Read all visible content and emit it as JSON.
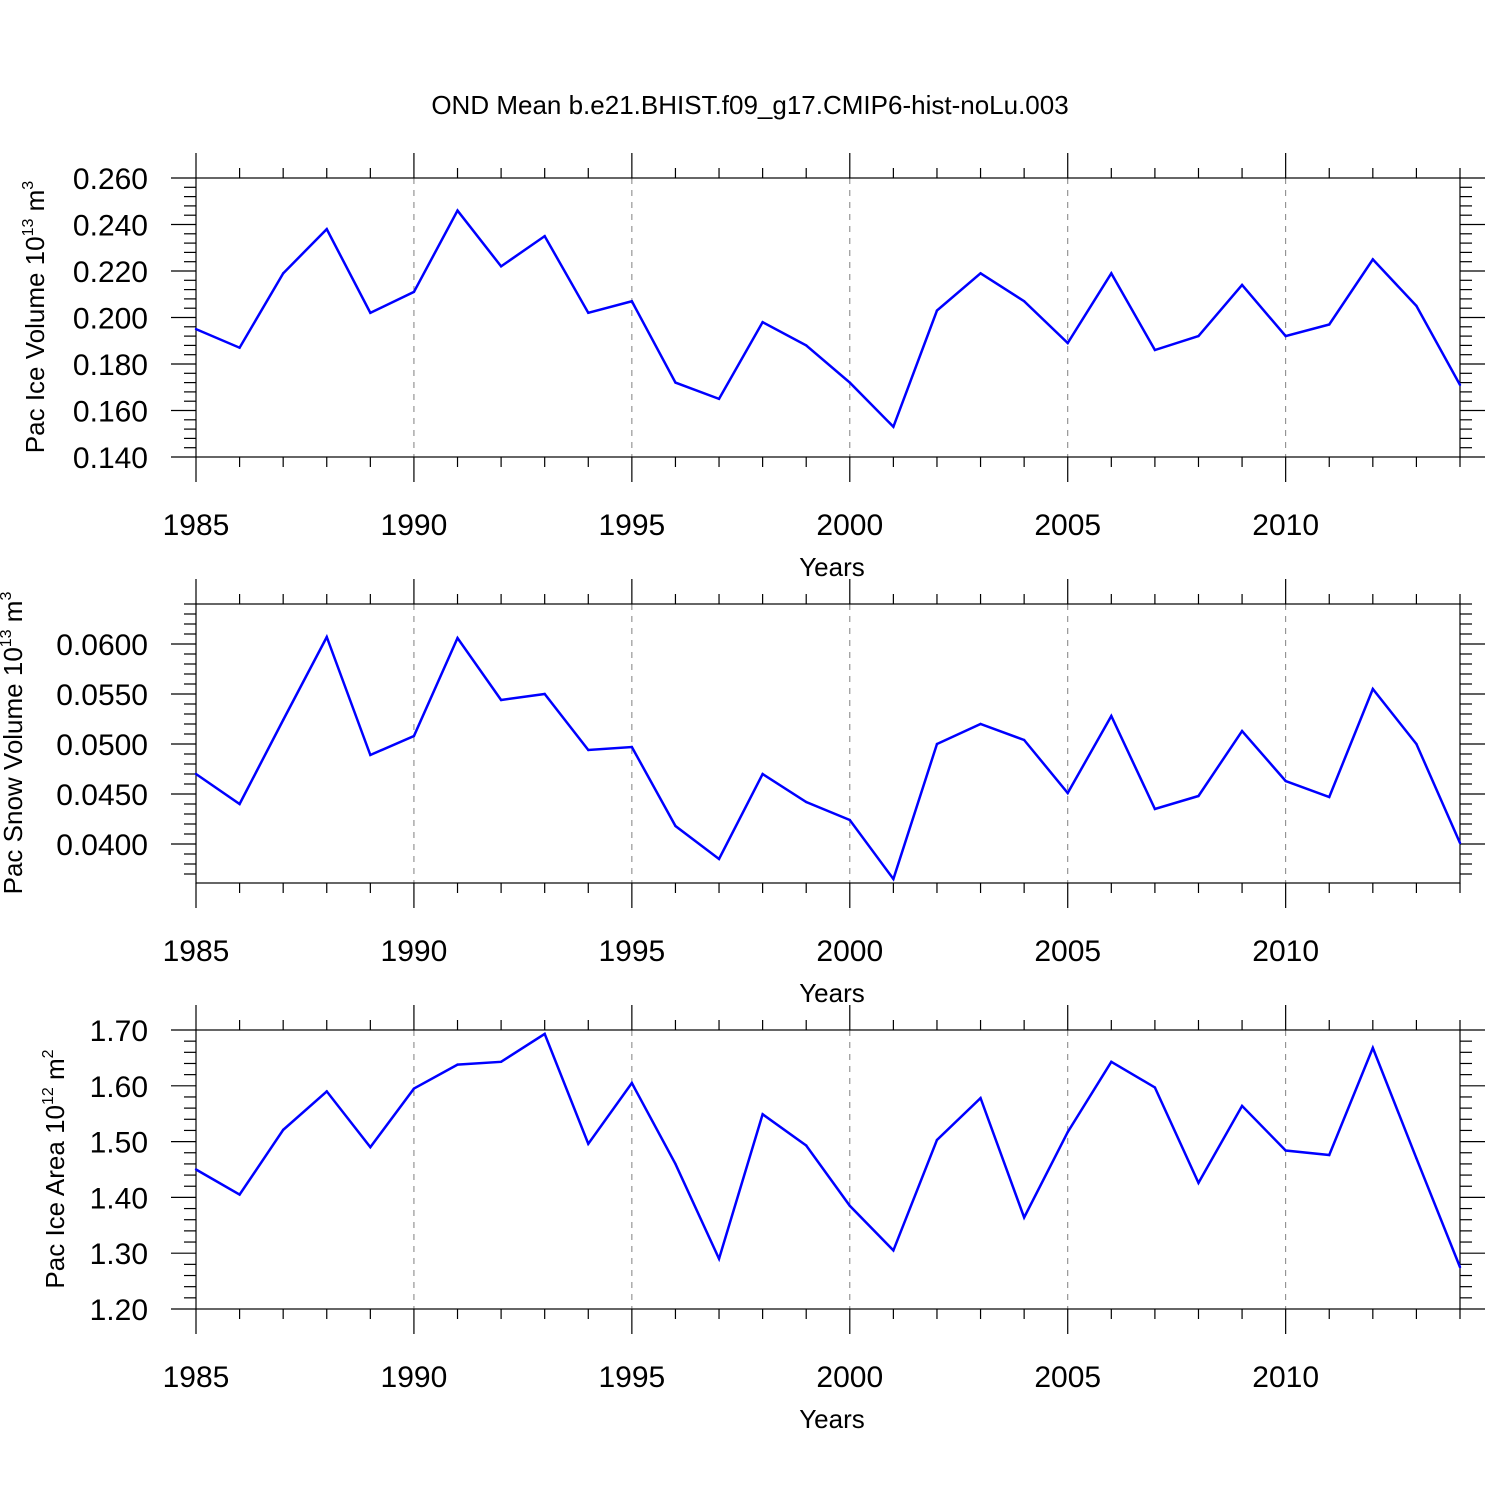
{
  "title": "OND Mean b.e21.BHIST.f09_g17.CMIP6-hist-noLu.003",
  "colors": {
    "line": "#0000ff",
    "axis": "#000000",
    "grid": "#808080"
  },
  "chart_data": [
    {
      "type": "line",
      "xlabel": "Years",
      "ylabel": {
        "prefix": "Pac Ice Volume 10",
        "exponent": "13",
        "unit": " m",
        "unit_exponent": "3"
      },
      "xlim": [
        1985,
        2014
      ],
      "ylim": [
        0.14,
        0.26
      ],
      "x_ticks": [
        1985,
        1990,
        1995,
        2000,
        2005,
        2010
      ],
      "x_tick_labels": [
        "1985",
        "1990",
        "1995",
        "2000",
        "2005",
        "2010"
      ],
      "y_ticks": [
        0.14,
        0.16,
        0.18,
        0.2,
        0.22,
        0.24,
        0.26
      ],
      "y_tick_labels": [
        "0.140",
        "0.160",
        "0.180",
        "0.200",
        "0.220",
        "0.240",
        "0.260"
      ],
      "grid_x": true,
      "x": [
        1985,
        1986,
        1987,
        1988,
        1989,
        1990,
        1991,
        1992,
        1993,
        1994,
        1995,
        1996,
        1997,
        1998,
        1999,
        2000,
        2001,
        2002,
        2003,
        2004,
        2005,
        2006,
        2007,
        2008,
        2009,
        2010,
        2011,
        2012,
        2013,
        2014
      ],
      "values": [
        0.195,
        0.187,
        0.219,
        0.238,
        0.202,
        0.211,
        0.246,
        0.222,
        0.235,
        0.202,
        0.207,
        0.172,
        0.165,
        0.198,
        0.188,
        0.172,
        0.153,
        0.203,
        0.219,
        0.207,
        0.189,
        0.219,
        0.186,
        0.192,
        0.214,
        0.192,
        0.197,
        0.225,
        0.205,
        0.171
      ]
    },
    {
      "type": "line",
      "xlabel": "Years",
      "ylabel": {
        "prefix": "Pac Snow Volume 10",
        "exponent": "13",
        "unit": " m",
        "unit_exponent": "3"
      },
      "xlim": [
        1985,
        2014
      ],
      "ylim": [
        0.0361,
        0.064
      ],
      "x_ticks": [
        1985,
        1990,
        1995,
        2000,
        2005,
        2010
      ],
      "x_tick_labels": [
        "1985",
        "1990",
        "1995",
        "2000",
        "2005",
        "2010"
      ],
      "y_ticks": [
        0.04,
        0.045,
        0.05,
        0.055,
        0.06
      ],
      "y_tick_labels": [
        "0.0400",
        "0.0450",
        "0.0500",
        "0.0550",
        "0.0600"
      ],
      "grid_x": true,
      "x": [
        1985,
        1986,
        1987,
        1988,
        1989,
        1990,
        1991,
        1992,
        1993,
        1994,
        1995,
        1996,
        1997,
        1998,
        1999,
        2000,
        2001,
        2002,
        2003,
        2004,
        2005,
        2006,
        2007,
        2008,
        2009,
        2010,
        2011,
        2012,
        2013,
        2014
      ],
      "values": [
        0.047,
        0.044,
        0.0524,
        0.0607,
        0.0489,
        0.0508,
        0.0606,
        0.0544,
        0.055,
        0.0494,
        0.0497,
        0.0418,
        0.0385,
        0.047,
        0.0442,
        0.0424,
        0.0365,
        0.05,
        0.052,
        0.0504,
        0.0451,
        0.0528,
        0.0435,
        0.0448,
        0.0513,
        0.0463,
        0.0447,
        0.0555,
        0.05,
        0.0401
      ]
    },
    {
      "type": "line",
      "xlabel": "Years",
      "ylabel": {
        "prefix": "Pac Ice Area 10",
        "exponent": "12",
        "unit": " m",
        "unit_exponent": "2"
      },
      "xlim": [
        1985,
        2014
      ],
      "ylim": [
        1.2,
        1.7
      ],
      "x_ticks": [
        1985,
        1990,
        1995,
        2000,
        2005,
        2010
      ],
      "x_tick_labels": [
        "1985",
        "1990",
        "1995",
        "2000",
        "2005",
        "2010"
      ],
      "y_ticks": [
        1.2,
        1.3,
        1.4,
        1.5,
        1.6,
        1.7
      ],
      "y_tick_labels": [
        "1.20",
        "1.30",
        "1.40",
        "1.50",
        "1.60",
        "1.70"
      ],
      "grid_x": true,
      "x": [
        1985,
        1986,
        1987,
        1988,
        1989,
        1990,
        1991,
        1992,
        1993,
        1994,
        1995,
        1996,
        1997,
        1998,
        1999,
        2000,
        2001,
        2002,
        2003,
        2004,
        2005,
        2006,
        2007,
        2008,
        2009,
        2010,
        2011,
        2012,
        2013,
        2014
      ],
      "values": [
        1.45,
        1.405,
        1.521,
        1.59,
        1.49,
        1.595,
        1.638,
        1.643,
        1.693,
        1.496,
        1.605,
        1.46,
        1.29,
        1.549,
        1.493,
        1.385,
        1.305,
        1.503,
        1.578,
        1.364,
        1.517,
        1.643,
        1.597,
        1.426,
        1.564,
        1.484,
        1.476,
        1.668,
        1.47,
        1.275
      ]
    }
  ]
}
